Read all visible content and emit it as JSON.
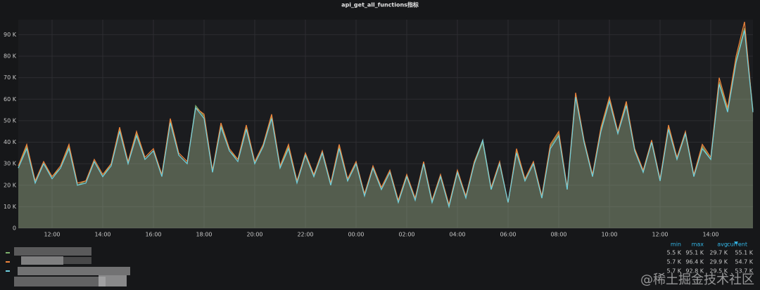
{
  "chart_data": {
    "type": "line",
    "title": "api_get_all_functions指标",
    "categories": [
      "",
      "",
      "",
      "",
      "12:00",
      "",
      "",
      "",
      "",
      "",
      "14:00",
      "",
      "",
      "",
      "",
      "",
      "16:00",
      "",
      "",
      "",
      "",
      "",
      "18:00",
      "",
      "",
      "",
      "",
      "",
      "20:00",
      "",
      "",
      "",
      "",
      "",
      "22:00",
      "",
      "",
      "",
      "",
      "",
      "00:00",
      "",
      "",
      "",
      "",
      "",
      "02:00",
      "",
      "",
      "",
      "",
      "",
      "04:00",
      "",
      "",
      "",
      "",
      "",
      "06:00",
      "",
      "",
      "",
      "",
      "",
      "08:00",
      "",
      "",
      "",
      "",
      "",
      "10:00",
      "",
      "",
      "",
      "",
      "",
      "12:00",
      "",
      "",
      "",
      "",
      "",
      "14:00",
      "",
      "",
      "",
      "",
      ""
    ],
    "ylim": [
      0,
      97
    ],
    "yticks": [
      0,
      {
        "value": 10,
        "label": "10 K"
      },
      {
        "value": 20,
        "label": "20 K"
      },
      {
        "value": 30,
        "label": "30 K"
      },
      {
        "value": 40,
        "label": "40 K"
      },
      {
        "value": 50,
        "label": "50 K"
      },
      {
        "value": 60,
        "label": "60 K"
      },
      {
        "value": 70,
        "label": "70 K"
      },
      {
        "value": 80,
        "label": "80 K"
      },
      {
        "value": 90,
        "label": "90 K"
      }
    ],
    "grid": true,
    "series": [
      {
        "color": "#7eb26d",
        "values": [
          28,
          38,
          22,
          30,
          24,
          28,
          38,
          20,
          22,
          31,
          24,
          30,
          46,
          30,
          44,
          32,
          36,
          25,
          50,
          34,
          30,
          57,
          52,
          26,
          48,
          36,
          32,
          47,
          30,
          38,
          52,
          28,
          38,
          22,
          34,
          24,
          35,
          20,
          38,
          22,
          30,
          16,
          28,
          18,
          26,
          12,
          24,
          14,
          30,
          12,
          24,
          10,
          26,
          15,
          30,
          40,
          18,
          30,
          12,
          36,
          22,
          30,
          14,
          38,
          44,
          18,
          62,
          40,
          24,
          46,
          60,
          44,
          58,
          36,
          26,
          40,
          22,
          47,
          32,
          44,
          24,
          38,
          32,
          68,
          55,
          78,
          93,
          55
        ]
      },
      {
        "color": "#ef843c",
        "values": [
          29,
          39,
          22,
          31,
          24,
          29,
          39,
          21,
          22,
          32,
          25,
          30,
          47,
          31,
          45,
          33,
          37,
          25,
          51,
          35,
          31,
          56,
          53,
          27,
          49,
          37,
          32,
          48,
          31,
          39,
          53,
          29,
          39,
          22,
          35,
          25,
          36,
          21,
          39,
          23,
          31,
          16,
          29,
          19,
          27,
          13,
          25,
          14,
          31,
          13,
          25,
          11,
          27,
          15,
          31,
          41,
          19,
          31,
          12,
          37,
          23,
          31,
          15,
          39,
          45,
          19,
          63,
          41,
          25,
          47,
          61,
          45,
          59,
          37,
          27,
          41,
          23,
          48,
          33,
          45,
          25,
          39,
          33,
          70,
          56,
          80,
          96,
          54
        ]
      },
      {
        "color": "#6ed0e0",
        "values": [
          28,
          37,
          21,
          30,
          23,
          28,
          37,
          20,
          21,
          31,
          24,
          29,
          45,
          30,
          43,
          32,
          36,
          24,
          49,
          34,
          30,
          56,
          51,
          26,
          47,
          36,
          31,
          46,
          30,
          38,
          51,
          28,
          37,
          21,
          34,
          24,
          35,
          20,
          37,
          22,
          30,
          15,
          28,
          18,
          26,
          12,
          24,
          13,
          30,
          12,
          24,
          10,
          26,
          14,
          30,
          41,
          18,
          30,
          12,
          35,
          22,
          30,
          14,
          37,
          43,
          18,
          61,
          40,
          24,
          45,
          59,
          44,
          57,
          36,
          26,
          40,
          22,
          46,
          32,
          44,
          24,
          37,
          32,
          67,
          54,
          77,
          92,
          54
        ]
      }
    ],
    "legend": {
      "columns": [
        "min",
        "max",
        "avg",
        "current"
      ],
      "rows": [
        [
          "5.5 K",
          "95.1 K",
          "29.7 K",
          "55.1 K"
        ],
        [
          "5.7 K",
          "96.4 K",
          "29.9 K",
          "54.7 K"
        ],
        [
          "5.7 K",
          "92.8 K",
          "29.5 K",
          "53.7 K"
        ]
      ]
    }
  },
  "watermark": "@稀土掘金技术社区"
}
